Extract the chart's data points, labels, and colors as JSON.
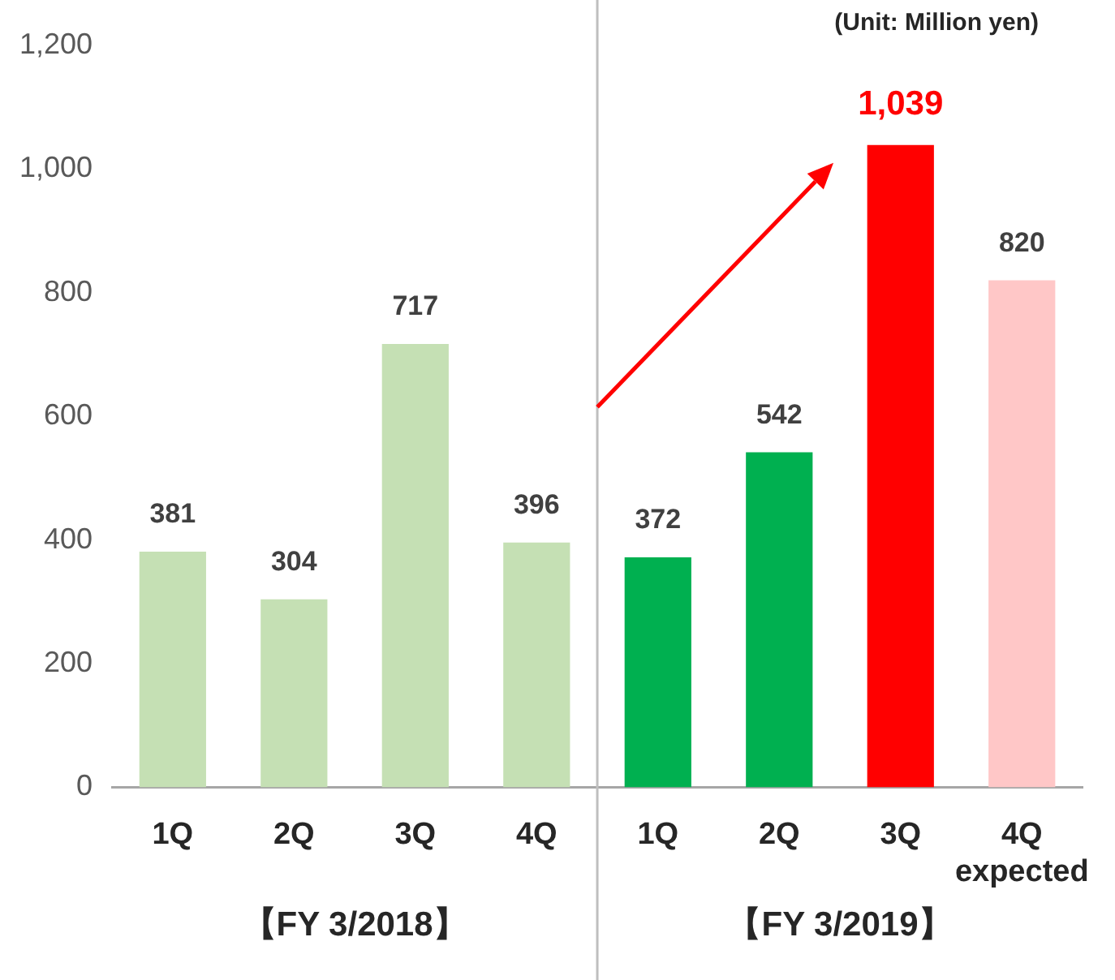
{
  "chart_data": {
    "type": "bar",
    "categories": [
      "1Q",
      "2Q",
      "3Q",
      "4Q",
      "1Q",
      "2Q",
      "3Q",
      "4Q"
    ],
    "values": [
      381,
      304,
      717,
      396,
      372,
      542,
      1039,
      820
    ],
    "colors": [
      "#c5e0b4",
      "#c5e0b4",
      "#c5e0b4",
      "#c5e0b4",
      "#00b050",
      "#00b050",
      "#ff0000",
      "#ffc7c7"
    ],
    "value_labels": [
      "381",
      "304",
      "717",
      "396",
      "372",
      "542",
      "1,039",
      "820"
    ],
    "ylim": [
      0,
      1200
    ],
    "yticks": [
      0,
      200,
      400,
      600,
      800,
      {
        "value": 1000,
        "label": "1,000"
      },
      {
        "value": 1200,
        "label": "1,200"
      }
    ],
    "grid": false,
    "legend": false,
    "annotations": [
      "(Unit: Million yen)",
      "expected",
      "【FY 3/2018】",
      "【FY 3/2019】"
    ]
  }
}
